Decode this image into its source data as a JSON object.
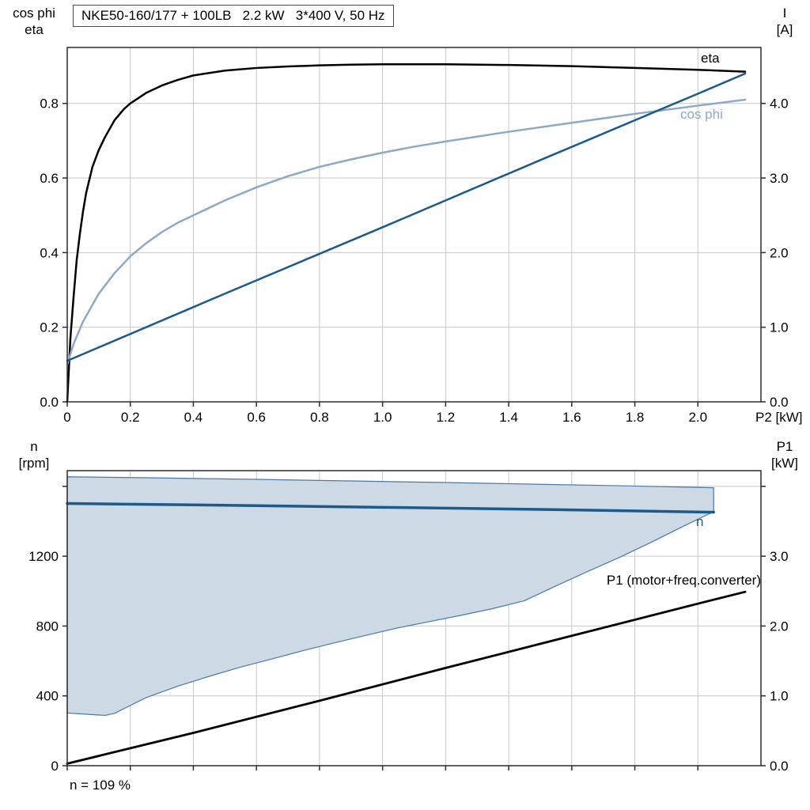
{
  "page": {
    "background": "#ffffff"
  },
  "chart_data": [
    {
      "type": "line",
      "title": "NKE50-160/177 + 100LB   2.2 kW   3*400 V, 50 Hz",
      "x": {
        "min": 0,
        "max": 2.2,
        "title": "P2 [kW]",
        "ticks": [
          {
            "v": 0,
            "l": "0"
          },
          {
            "v": 0.2,
            "l": "0.2"
          },
          {
            "v": 0.4,
            "l": "0.4"
          },
          {
            "v": 0.6,
            "l": "0.6"
          },
          {
            "v": 0.8,
            "l": "0.8"
          },
          {
            "v": 1.0,
            "l": "1.0"
          },
          {
            "v": 1.2,
            "l": "1.2"
          },
          {
            "v": 1.4,
            "l": "1.4"
          },
          {
            "v": 1.6,
            "l": "1.6"
          },
          {
            "v": 1.8,
            "l": "1.8"
          },
          {
            "v": 2.0,
            "l": "2.0"
          }
        ]
      },
      "y_left": {
        "min": 0,
        "max": 0.95,
        "label_lines": [
          "cos phi",
          "eta"
        ],
        "ticks": [
          {
            "v": 0,
            "l": "0.0"
          },
          {
            "v": 0.2,
            "l": "0.2"
          },
          {
            "v": 0.4,
            "l": "0.4"
          },
          {
            "v": 0.6,
            "l": "0.6"
          },
          {
            "v": 0.8,
            "l": "0.8"
          }
        ]
      },
      "y_right": {
        "min": 0,
        "max": 4.75,
        "label_lines": [
          "I",
          "[A]"
        ],
        "ticks": [
          {
            "v": 0,
            "l": "0.0"
          },
          {
            "v": 1,
            "l": "1.0"
          },
          {
            "v": 2,
            "l": "2.0"
          },
          {
            "v": 3,
            "l": "3.0"
          },
          {
            "v": 4,
            "l": "4.0"
          }
        ]
      },
      "series": [
        {
          "name": "eta",
          "color": "#000000",
          "axis": "left",
          "points": [
            [
              0,
              0
            ],
            [
              0.01,
              0.17
            ],
            [
              0.02,
              0.28
            ],
            [
              0.03,
              0.38
            ],
            [
              0.04,
              0.45
            ],
            [
              0.05,
              0.51
            ],
            [
              0.06,
              0.56
            ],
            [
              0.08,
              0.63
            ],
            [
              0.1,
              0.675
            ],
            [
              0.12,
              0.71
            ],
            [
              0.15,
              0.755
            ],
            [
              0.18,
              0.785
            ],
            [
              0.2,
              0.8
            ],
            [
              0.25,
              0.828
            ],
            [
              0.3,
              0.848
            ],
            [
              0.35,
              0.863
            ],
            [
              0.4,
              0.875
            ],
            [
              0.5,
              0.888
            ],
            [
              0.6,
              0.895
            ],
            [
              0.7,
              0.899
            ],
            [
              0.8,
              0.902
            ],
            [
              0.9,
              0.904
            ],
            [
              1.0,
              0.905
            ],
            [
              1.2,
              0.905
            ],
            [
              1.4,
              0.903
            ],
            [
              1.6,
              0.9
            ],
            [
              1.8,
              0.895
            ],
            [
              2.0,
              0.89
            ],
            [
              2.15,
              0.885
            ]
          ]
        },
        {
          "name": "cos phi",
          "color": "#8ea9c6",
          "axis": "left",
          "points": [
            [
              0,
              0.1
            ],
            [
              0.02,
              0.155
            ],
            [
              0.05,
              0.215
            ],
            [
              0.08,
              0.26
            ],
            [
              0.1,
              0.29
            ],
            [
              0.15,
              0.345
            ],
            [
              0.2,
              0.39
            ],
            [
              0.25,
              0.425
            ],
            [
              0.3,
              0.455
            ],
            [
              0.35,
              0.48
            ],
            [
              0.4,
              0.5
            ],
            [
              0.5,
              0.54
            ],
            [
              0.6,
              0.575
            ],
            [
              0.7,
              0.605
            ],
            [
              0.8,
              0.63
            ],
            [
              0.9,
              0.65
            ],
            [
              1.0,
              0.668
            ],
            [
              1.1,
              0.684
            ],
            [
              1.2,
              0.698
            ],
            [
              1.4,
              0.724
            ],
            [
              1.6,
              0.748
            ],
            [
              1.8,
              0.772
            ],
            [
              2.0,
              0.794
            ],
            [
              2.15,
              0.81
            ]
          ]
        },
        {
          "name": "I",
          "color": "#1b5a8a",
          "axis": "right",
          "points": [
            [
              0,
              0.55
            ],
            [
              0.5,
              1.45
            ],
            [
              1.0,
              2.34
            ],
            [
              1.5,
              3.24
            ],
            [
              2.0,
              4.13
            ],
            [
              2.15,
              4.4
            ]
          ]
        }
      ]
    },
    {
      "type": "line",
      "x": {
        "min": 0,
        "max": 2.2,
        "title": "",
        "ticks": [
          {
            "v": 0,
            "l": ""
          },
          {
            "v": 0.2,
            "l": ""
          },
          {
            "v": 0.4,
            "l": ""
          },
          {
            "v": 0.6,
            "l": ""
          },
          {
            "v": 0.8,
            "l": ""
          },
          {
            "v": 1.0,
            "l": ""
          },
          {
            "v": 1.2,
            "l": ""
          },
          {
            "v": 1.4,
            "l": ""
          },
          {
            "v": 1.6,
            "l": ""
          },
          {
            "v": 1.8,
            "l": ""
          },
          {
            "v": 2.0,
            "l": ""
          }
        ]
      },
      "y_left": {
        "min": 0,
        "max": 1690,
        "label_lines": [
          "n",
          "[rpm]"
        ],
        "ticks": [
          {
            "v": 0,
            "l": "0"
          },
          {
            "v": 400,
            "l": "400"
          },
          {
            "v": 800,
            "l": "800"
          },
          {
            "v": 1200,
            "l": "1200"
          },
          {
            "v": 1600,
            "l": ""
          }
        ]
      },
      "y_right": {
        "min": 0,
        "max": 4.225,
        "label_lines": [
          "P1",
          "[kW]"
        ],
        "ticks": [
          {
            "v": 0,
            "l": "0.0"
          },
          {
            "v": 1,
            "l": "1.0"
          },
          {
            "v": 2,
            "l": "2.0"
          },
          {
            "v": 3,
            "l": "3.0"
          },
          {
            "v": 4,
            "l": ""
          }
        ]
      },
      "band": {
        "name": "speed-range-band",
        "fill": "#cdd9e5",
        "stroke": "#4a79a5",
        "axis": "left",
        "upper": [
          [
            0,
            1655
          ],
          [
            0.3,
            1648
          ],
          [
            0.6,
            1640
          ],
          [
            0.9,
            1631
          ],
          [
            1.2,
            1622
          ],
          [
            1.5,
            1612
          ],
          [
            1.8,
            1602
          ],
          [
            2.05,
            1592
          ]
        ],
        "lower": [
          [
            0,
            302
          ],
          [
            0.12,
            288
          ],
          [
            0.15,
            300
          ],
          [
            0.25,
            390
          ],
          [
            0.35,
            455
          ],
          [
            0.45,
            512
          ],
          [
            0.55,
            565
          ],
          [
            0.65,
            612
          ],
          [
            0.75,
            660
          ],
          [
            0.85,
            705
          ],
          [
            0.95,
            748
          ],
          [
            1.05,
            790
          ],
          [
            1.15,
            826
          ],
          [
            1.25,
            862
          ],
          [
            1.35,
            900
          ],
          [
            1.45,
            945
          ],
          [
            1.55,
            1030
          ],
          [
            1.65,
            1112
          ],
          [
            1.75,
            1192
          ],
          [
            1.85,
            1278
          ],
          [
            1.95,
            1368
          ],
          [
            2.05,
            1455
          ]
        ]
      },
      "series": [
        {
          "name": "n",
          "color": "#1b5a8a",
          "axis": "left",
          "points": [
            [
              0,
              1502
            ],
            [
              0.5,
              1492
            ],
            [
              1.0,
              1480
            ],
            [
              1.5,
              1468
            ],
            [
              2.05,
              1452
            ]
          ]
        },
        {
          "name": "P1 (motor+freq.converter)",
          "color": "#000000",
          "axis": "right",
          "points": [
            [
              0,
              0.03
            ],
            [
              0.4,
              0.47
            ],
            [
              0.8,
              0.93
            ],
            [
              1.2,
              1.4
            ],
            [
              1.6,
              1.86
            ],
            [
              2.0,
              2.32
            ],
            [
              2.15,
              2.49
            ]
          ]
        }
      ],
      "note": "n = 109 %"
    }
  ]
}
